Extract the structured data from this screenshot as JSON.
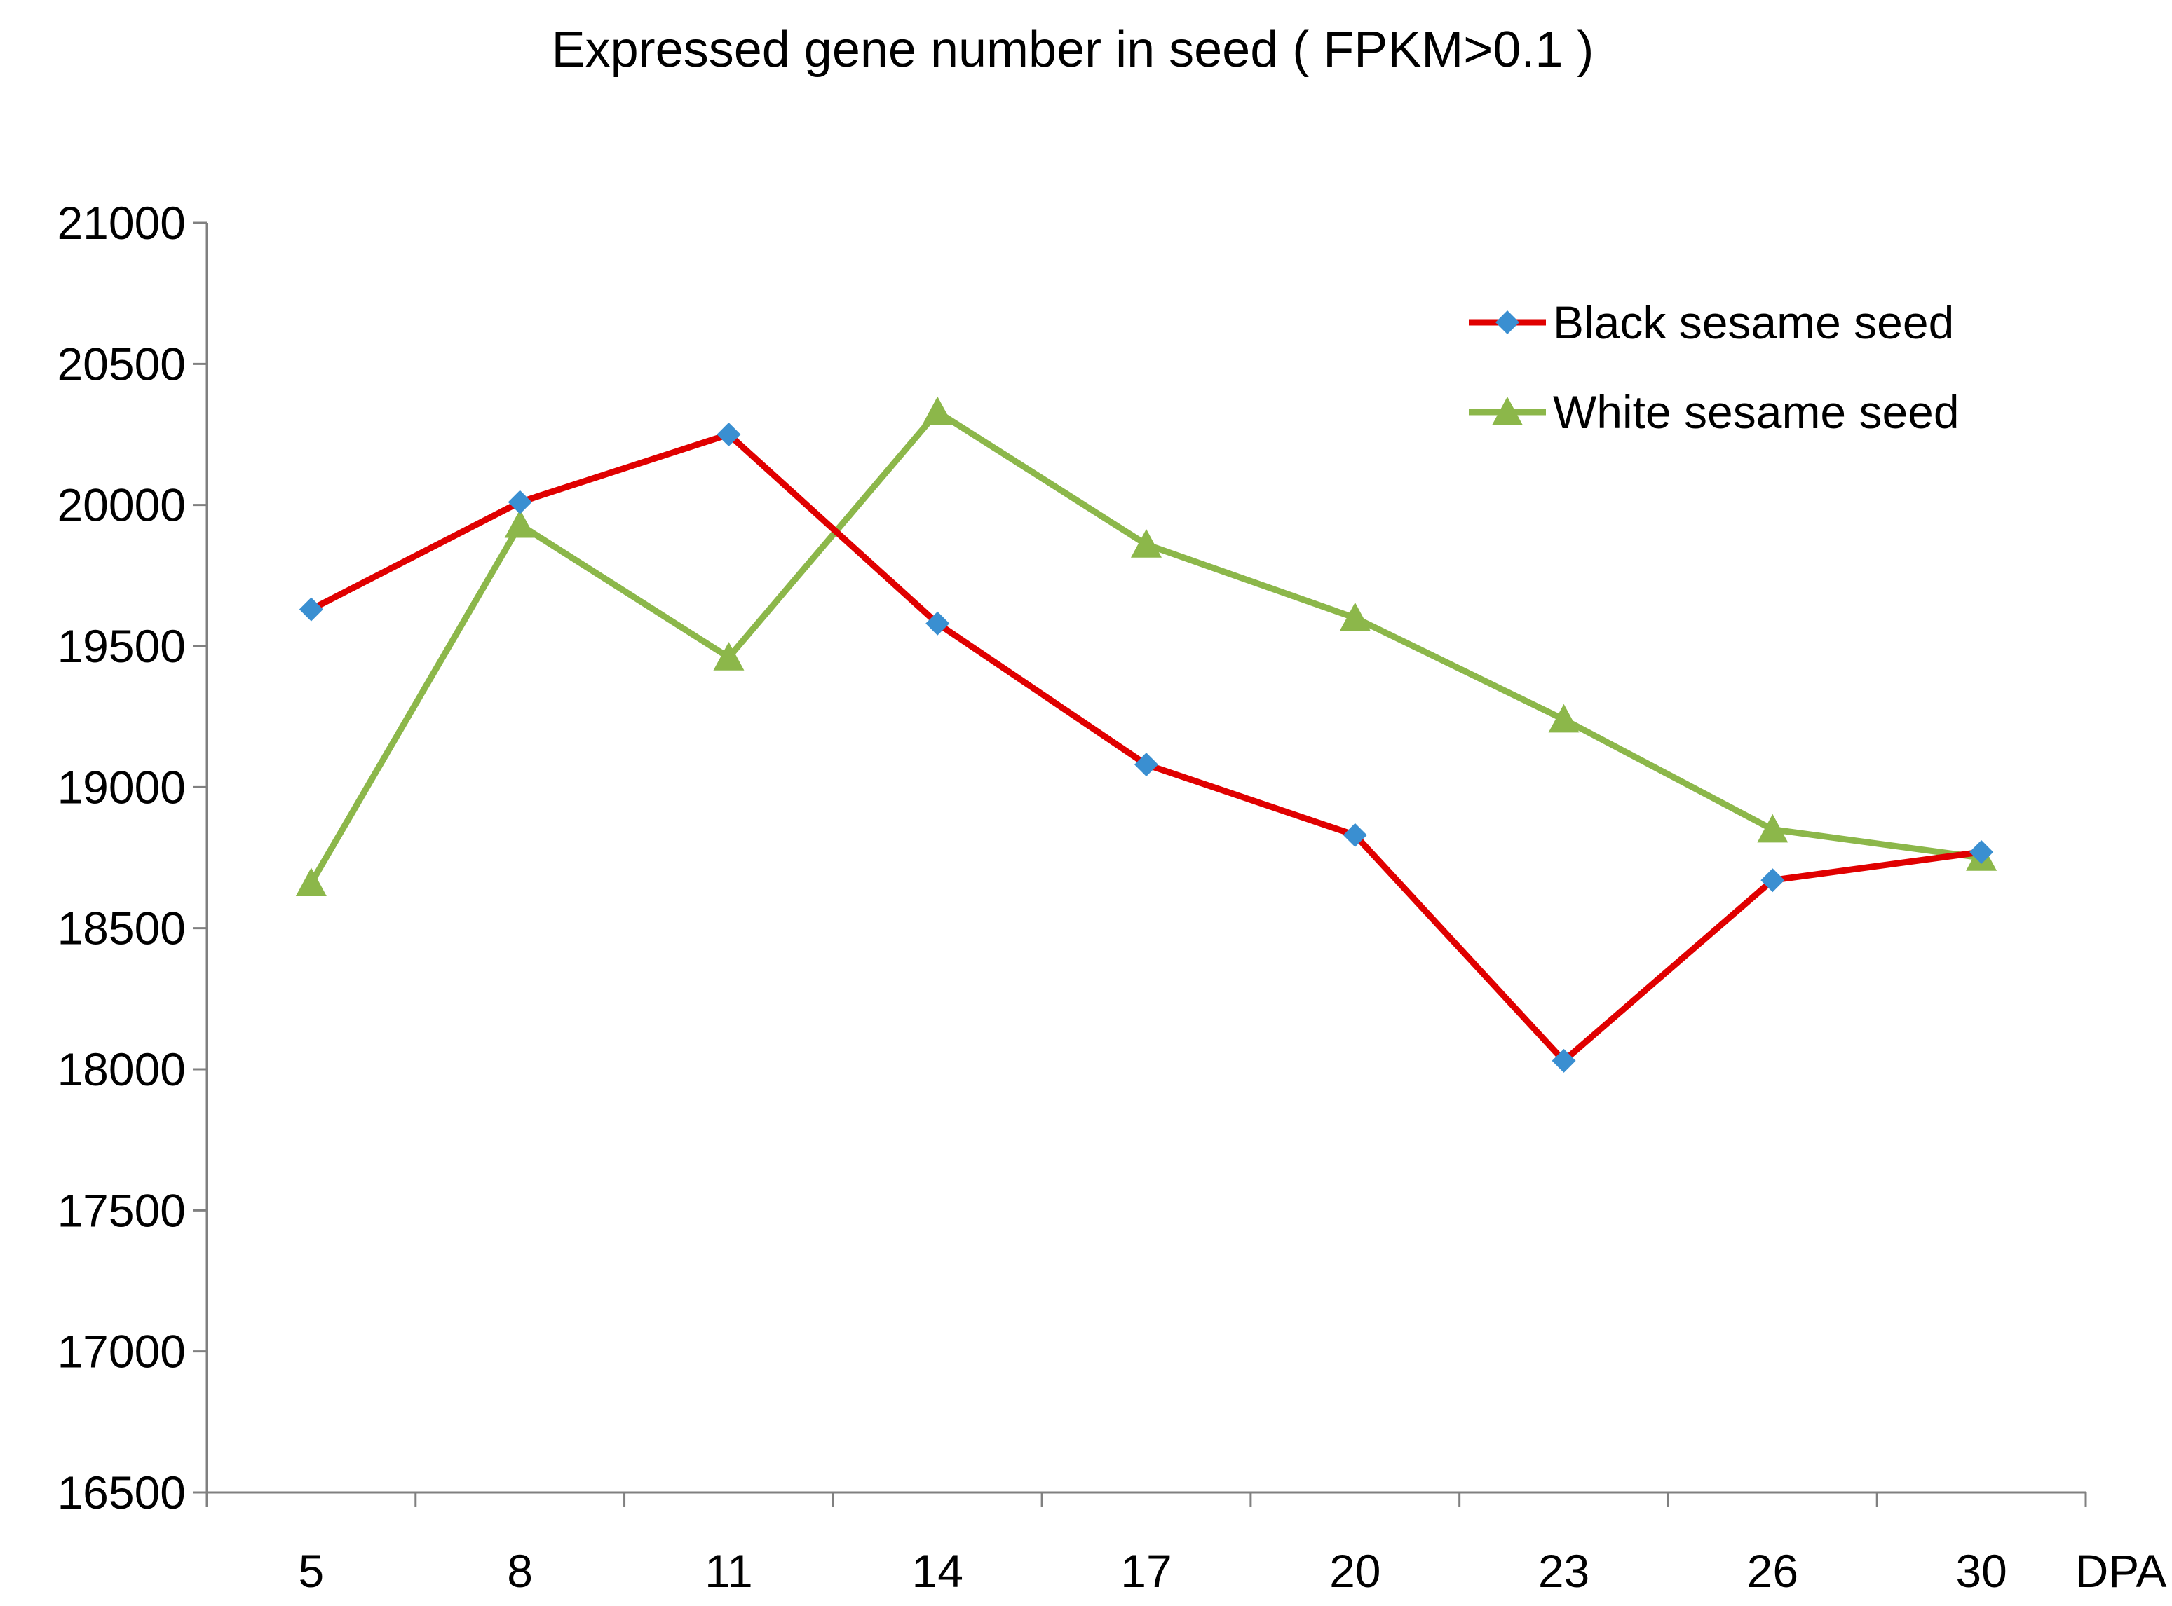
{
  "chart_data": {
    "type": "line",
    "title": "Expressed gene number in seed ( FPKM>0.1 )",
    "xlabel": "DPA",
    "ylabel": "",
    "categories": [
      "5",
      "8",
      "11",
      "14",
      "17",
      "20",
      "23",
      "26",
      "30"
    ],
    "ylim": [
      16500,
      21000
    ],
    "yticks": [
      16500,
      17000,
      17500,
      18000,
      18500,
      19000,
      19500,
      20000,
      20500,
      21000
    ],
    "ytick_labels": [
      "16500",
      "17000",
      "17500",
      "18000",
      "18500",
      "19000",
      "19500",
      "20000",
      "20500",
      "21000"
    ],
    "grid": false,
    "legend_position": "top-right",
    "series": [
      {
        "name": "Black sesame seed",
        "color": "#e00000",
        "marker": "diamond",
        "marker_color": "#3a8fd1",
        "values": [
          19630,
          20010,
          20250,
          19580,
          19080,
          18830,
          18030,
          18670,
          18770
        ]
      },
      {
        "name": "White sesame seed",
        "color": "#8cb74a",
        "marker": "triangle",
        "marker_color": "#8cb74a",
        "values": [
          18660,
          19930,
          19460,
          20330,
          19860,
          19600,
          19240,
          18850,
          18750
        ]
      }
    ]
  }
}
